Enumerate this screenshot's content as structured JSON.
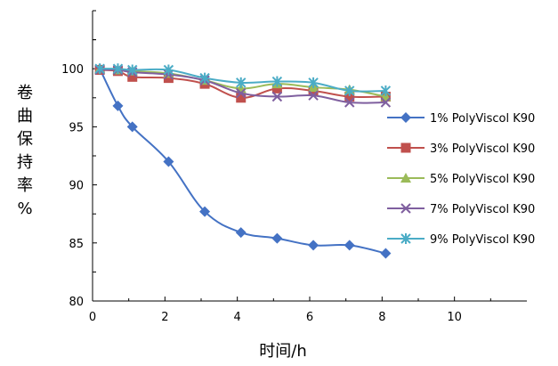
{
  "chart_data": {
    "type": "line",
    "xlabel": "时间/h",
    "ylabel": "卷曲保持率%",
    "xlim": [
      0,
      12
    ],
    "ylim": [
      80,
      105
    ],
    "xticks": [
      "0",
      "2",
      "4",
      "6",
      "8",
      "10"
    ],
    "yticks": [
      "80",
      "85",
      "90",
      "95",
      "100"
    ],
    "grid": false,
    "legend_position": "right",
    "x": [
      0.2,
      0.7,
      1.1,
      2.1,
      3.1,
      4.1,
      5.1,
      6.1,
      7.1,
      8.1
    ],
    "series": [
      {
        "name": "1% PolyViscol K90",
        "color": "#4472C4",
        "marker": "diamond",
        "values": [
          100,
          96.8,
          95,
          92,
          87.7,
          85.9,
          85.4,
          84.8,
          84.8,
          84.1
        ]
      },
      {
        "name": "3% PolyViscol K90",
        "color": "#C0504D",
        "marker": "square",
        "values": [
          99.9,
          99.8,
          99.3,
          99.2,
          98.7,
          97.5,
          98.3,
          98.1,
          97.6,
          97.6
        ]
      },
      {
        "name": "5% PolyViscol K90",
        "color": "#9BBB59",
        "marker": "triangle",
        "values": [
          100,
          99.9,
          99.8,
          99.6,
          99,
          98.3,
          98.7,
          98.4,
          98.2,
          97.6
        ]
      },
      {
        "name": "7% PolyViscol K90",
        "color": "#7F5F9F",
        "marker": "x",
        "values": [
          99.9,
          99.9,
          99.7,
          99.5,
          99,
          97.9,
          97.6,
          97.7,
          97.1,
          97.1
        ]
      },
      {
        "name": "9% PolyViscol K90",
        "color": "#4BACC6",
        "marker": "star",
        "values": [
          100,
          100,
          99.9,
          99.9,
          99.2,
          98.8,
          98.9,
          98.8,
          98.1,
          98.1
        ]
      }
    ]
  }
}
